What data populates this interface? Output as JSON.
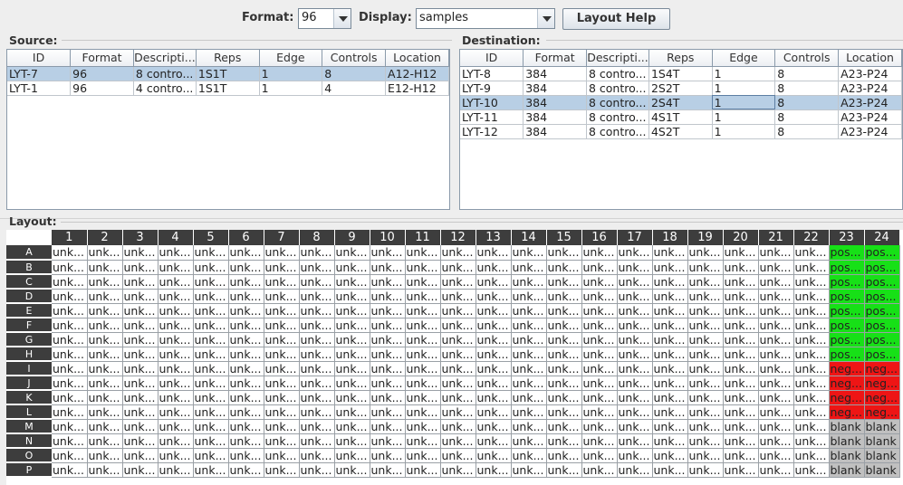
{
  "toolbar": {
    "format_label": "Format:",
    "format_value": "96",
    "display_label": "Display:",
    "display_value": "samples",
    "help_button": "Layout Help"
  },
  "source": {
    "title": "Source:",
    "columns": [
      "ID",
      "Format",
      "Descripti...",
      "Reps",
      "Edge",
      "Controls",
      "Location"
    ],
    "selected_row": 0,
    "rows": [
      [
        "LYT-7",
        "96",
        "8 contro...",
        "1S1T",
        "1",
        "8",
        "A12-H12"
      ],
      [
        "LYT-1",
        "96",
        "4 contro...",
        "1S1T",
        "1",
        "4",
        "E12-H12"
      ]
    ]
  },
  "destination": {
    "title": "Destination:",
    "columns": [
      "ID",
      "Format",
      "Descripti...",
      "Reps",
      "Edge",
      "Controls",
      "Location"
    ],
    "selected_row": 2,
    "rows": [
      [
        "LYT-8",
        "384",
        "8 contro...",
        "1S4T",
        "1",
        "8",
        "A23-P24"
      ],
      [
        "LYT-9",
        "384",
        "8 contro...",
        "2S2T",
        "1",
        "8",
        "A23-P24"
      ],
      [
        "LYT-10",
        "384",
        "8 contro...",
        "2S4T",
        "1",
        "8",
        "A23-P24"
      ],
      [
        "LYT-11",
        "384",
        "8 contro...",
        "4S1T",
        "1",
        "8",
        "A23-P24"
      ],
      [
        "LYT-12",
        "384",
        "8 contro...",
        "4S2T",
        "1",
        "8",
        "A23-P24"
      ]
    ]
  },
  "layout": {
    "title": "Layout:",
    "columns": [
      "1",
      "2",
      "3",
      "4",
      "5",
      "6",
      "7",
      "8",
      "9",
      "10",
      "11",
      "12",
      "13",
      "14",
      "15",
      "16",
      "17",
      "18",
      "19",
      "20",
      "21",
      "22",
      "23",
      "24"
    ],
    "rows": [
      "A",
      "B",
      "C",
      "D",
      "E",
      "F",
      "G",
      "H",
      "I",
      "J",
      "K",
      "L",
      "M",
      "N",
      "O",
      "P"
    ],
    "cell_unknown": "unk...",
    "cell_pos": "pos...",
    "cell_neg": "neg...",
    "cell_blank": "blank",
    "control_rows": {
      "A": "pos",
      "B": "pos",
      "C": "pos",
      "D": "pos",
      "E": "pos",
      "F": "pos",
      "G": "pos",
      "H": "pos",
      "I": "neg",
      "J": "neg",
      "K": "neg",
      "L": "neg",
      "M": "blank",
      "N": "blank",
      "O": "blank",
      "P": "blank"
    },
    "colors": {
      "pos": "#17e017",
      "neg": "#ee1515",
      "blank": "#c0c0c0"
    }
  }
}
